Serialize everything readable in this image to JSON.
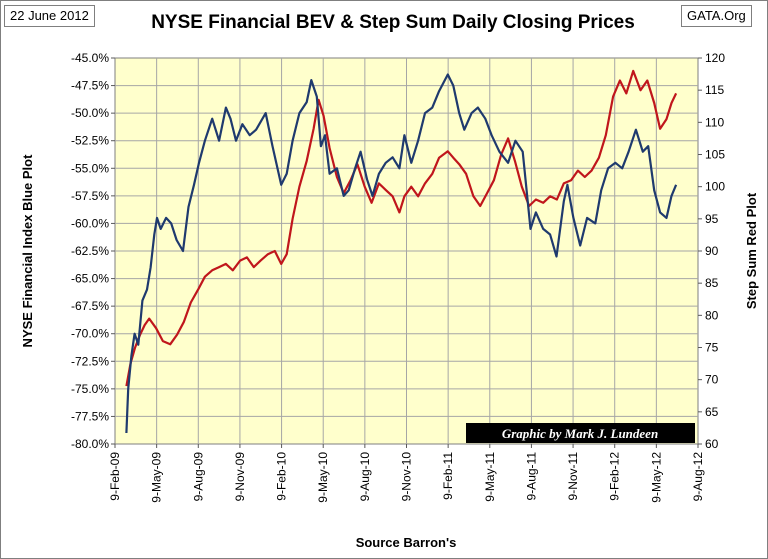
{
  "header": {
    "date_tag": "22 June 2012",
    "site_tag": "GATA.Org"
  },
  "chart_data": {
    "type": "line",
    "title": "NYSE Financial BEV & Step Sum Daily Closing Prices",
    "xlabel": "Source Barron's",
    "ylabel_left": "NYSE Financial Index Blue Plot",
    "ylabel_right": "Step Sum Red Plot",
    "credit": "Graphic by Mark J. Lundeen",
    "grid": true,
    "x_ticks": [
      "9-Feb-09",
      "9-May-09",
      "9-Aug-09",
      "9-Nov-09",
      "9-Feb-10",
      "9-May-10",
      "9-Aug-10",
      "9-Nov-10",
      "9-Feb-11",
      "9-May-11",
      "9-Aug-11",
      "9-Nov-11",
      "9-Feb-12",
      "9-May-12",
      "9-Aug-12"
    ],
    "y_left_ticks": [
      "-45.0%",
      "-47.5%",
      "-50.0%",
      "-52.5%",
      "-55.0%",
      "-57.5%",
      "-60.0%",
      "-62.5%",
      "-65.0%",
      "-67.5%",
      "-70.0%",
      "-72.5%",
      "-75.0%",
      "-77.5%",
      "-80.0%"
    ],
    "y_right_ticks": [
      "120",
      "115",
      "110",
      "105",
      "100",
      "95",
      "90",
      "85",
      "80",
      "75",
      "70",
      "65",
      "60"
    ],
    "y_left_range": [
      -80,
      -45
    ],
    "y_right_range": [
      60,
      120
    ],
    "colors": {
      "blue_series": "#1f3a6e",
      "red_series": "#c0161c",
      "plot_bg": "#ffffcc",
      "grid": "#a6a6a6"
    },
    "series": [
      {
        "axis": "left",
        "points": [
          [
            "2009-03-06",
            -79.0
          ],
          [
            "2009-03-10",
            -75.0
          ],
          [
            "2009-03-17",
            -72.0
          ],
          [
            "2009-03-24",
            -70.0
          ],
          [
            "2009-04-01",
            -71.0
          ],
          [
            "2009-04-10",
            -67.0
          ],
          [
            "2009-04-20",
            -66.0
          ],
          [
            "2009-04-28",
            -64.0
          ],
          [
            "2009-05-06",
            -61.0
          ],
          [
            "2009-05-12",
            -59.5
          ],
          [
            "2009-05-20",
            -60.5
          ],
          [
            "2009-06-01",
            -59.5
          ],
          [
            "2009-06-12",
            -60.0
          ],
          [
            "2009-06-24",
            -61.5
          ],
          [
            "2009-07-08",
            -62.5
          ],
          [
            "2009-07-20",
            -58.5
          ],
          [
            "2009-08-01",
            -56.5
          ],
          [
            "2009-08-12",
            -54.5
          ],
          [
            "2009-08-25",
            -52.5
          ],
          [
            "2009-09-10",
            -50.5
          ],
          [
            "2009-09-25",
            -52.5
          ],
          [
            "2009-10-10",
            -49.5
          ],
          [
            "2009-10-20",
            -50.5
          ],
          [
            "2009-11-01",
            -52.5
          ],
          [
            "2009-11-15",
            -51.0
          ],
          [
            "2009-12-01",
            -52.0
          ],
          [
            "2009-12-15",
            -51.5
          ],
          [
            "2010-01-05",
            -50.0
          ],
          [
            "2010-01-20",
            -53.0
          ],
          [
            "2010-02-08",
            -56.5
          ],
          [
            "2010-02-20",
            -55.5
          ],
          [
            "2010-03-05",
            -52.5
          ],
          [
            "2010-03-20",
            -50.0
          ],
          [
            "2010-04-05",
            -49.0
          ],
          [
            "2010-04-15",
            -47.0
          ],
          [
            "2010-04-27",
            -48.5
          ],
          [
            "2010-05-06",
            -53.0
          ],
          [
            "2010-05-15",
            -52.0
          ],
          [
            "2010-05-25",
            -55.5
          ],
          [
            "2010-06-10",
            -55.0
          ],
          [
            "2010-06-25",
            -57.5
          ],
          [
            "2010-07-06",
            -57.0
          ],
          [
            "2010-07-20",
            -55.0
          ],
          [
            "2010-08-01",
            -53.5
          ],
          [
            "2010-08-15",
            -56.0
          ],
          [
            "2010-08-27",
            -57.5
          ],
          [
            "2010-09-10",
            -55.5
          ],
          [
            "2010-09-25",
            -54.5
          ],
          [
            "2010-10-10",
            -54.0
          ],
          [
            "2010-10-25",
            -55.0
          ],
          [
            "2010-11-05",
            -52.0
          ],
          [
            "2010-11-20",
            -54.5
          ],
          [
            "2010-12-05",
            -52.5
          ],
          [
            "2010-12-20",
            -50.0
          ],
          [
            "2011-01-05",
            -49.5
          ],
          [
            "2011-01-20",
            -48.0
          ],
          [
            "2011-02-08",
            -46.5
          ],
          [
            "2011-02-20",
            -47.5
          ],
          [
            "2011-03-05",
            -50.0
          ],
          [
            "2011-03-16",
            -51.5
          ],
          [
            "2011-04-01",
            -50.0
          ],
          [
            "2011-04-15",
            -49.5
          ],
          [
            "2011-05-01",
            -50.5
          ],
          [
            "2011-05-15",
            -52.0
          ],
          [
            "2011-06-01",
            -53.5
          ],
          [
            "2011-06-20",
            -54.5
          ],
          [
            "2011-07-06",
            -52.5
          ],
          [
            "2011-07-22",
            -53.5
          ],
          [
            "2011-08-08",
            -60.5
          ],
          [
            "2011-08-20",
            -59.0
          ],
          [
            "2011-09-05",
            -60.5
          ],
          [
            "2011-09-20",
            -61.0
          ],
          [
            "2011-10-04",
            -63.0
          ],
          [
            "2011-10-20",
            -58.0
          ],
          [
            "2011-10-28",
            -56.5
          ],
          [
            "2011-11-10",
            -59.5
          ],
          [
            "2011-11-25",
            -62.0
          ],
          [
            "2011-12-10",
            -59.5
          ],
          [
            "2011-12-28",
            -60.0
          ],
          [
            "2012-01-10",
            -57.0
          ],
          [
            "2012-01-25",
            -55.0
          ],
          [
            "2012-02-10",
            -54.5
          ],
          [
            "2012-02-25",
            -55.0
          ],
          [
            "2012-03-10",
            -53.5
          ],
          [
            "2012-03-26",
            -51.5
          ],
          [
            "2012-04-10",
            -53.5
          ],
          [
            "2012-04-22",
            -53.0
          ],
          [
            "2012-05-05",
            -57.0
          ],
          [
            "2012-05-18",
            -59.0
          ],
          [
            "2012-06-01",
            -59.5
          ],
          [
            "2012-06-12",
            -57.5
          ],
          [
            "2012-06-22",
            -56.5
          ]
        ]
      },
      {
        "axis": "right",
        "points": [
          [
            "2009-03-06",
            69.0
          ],
          [
            "2009-03-15",
            72.5
          ],
          [
            "2009-03-25",
            75.0
          ],
          [
            "2009-04-05",
            77.0
          ],
          [
            "2009-04-15",
            78.5
          ],
          [
            "2009-04-25",
            79.5
          ],
          [
            "2009-05-10",
            78.0
          ],
          [
            "2009-05-25",
            76.0
          ],
          [
            "2009-06-10",
            75.5
          ],
          [
            "2009-06-25",
            77.0
          ],
          [
            "2009-07-10",
            79.0
          ],
          [
            "2009-07-25",
            82.0
          ],
          [
            "2009-08-10",
            84.0
          ],
          [
            "2009-08-25",
            86.0
          ],
          [
            "2009-09-10",
            87.0
          ],
          [
            "2009-09-25",
            87.5
          ],
          [
            "2009-10-10",
            88.0
          ],
          [
            "2009-10-25",
            87.0
          ],
          [
            "2009-11-10",
            88.5
          ],
          [
            "2009-11-25",
            89.0
          ],
          [
            "2009-12-10",
            87.5
          ],
          [
            "2009-12-25",
            88.5
          ],
          [
            "2010-01-10",
            89.5
          ],
          [
            "2010-01-25",
            90.0
          ],
          [
            "2010-02-08",
            88.0
          ],
          [
            "2010-02-20",
            89.5
          ],
          [
            "2010-03-05",
            95.0
          ],
          [
            "2010-03-20",
            100.0
          ],
          [
            "2010-04-05",
            104.0
          ],
          [
            "2010-04-20",
            109.0
          ],
          [
            "2010-05-01",
            113.5
          ],
          [
            "2010-05-12",
            111.0
          ],
          [
            "2010-05-25",
            106.0
          ],
          [
            "2010-06-10",
            101.5
          ],
          [
            "2010-06-25",
            99.0
          ],
          [
            "2010-07-10",
            101.0
          ],
          [
            "2010-07-25",
            103.5
          ],
          [
            "2010-08-10",
            100.0
          ],
          [
            "2010-08-25",
            97.5
          ],
          [
            "2010-09-10",
            100.5
          ],
          [
            "2010-09-25",
            99.5
          ],
          [
            "2010-10-10",
            98.5
          ],
          [
            "2010-10-25",
            96.0
          ],
          [
            "2010-11-05",
            98.5
          ],
          [
            "2010-11-20",
            100.0
          ],
          [
            "2010-12-05",
            98.5
          ],
          [
            "2010-12-20",
            100.5
          ],
          [
            "2011-01-05",
            102.0
          ],
          [
            "2011-01-20",
            104.5
          ],
          [
            "2011-02-08",
            105.5
          ],
          [
            "2011-02-20",
            104.5
          ],
          [
            "2011-03-05",
            103.5
          ],
          [
            "2011-03-20",
            102.0
          ],
          [
            "2011-04-05",
            98.5
          ],
          [
            "2011-04-20",
            97.0
          ],
          [
            "2011-05-05",
            99.0
          ],
          [
            "2011-05-20",
            101.0
          ],
          [
            "2011-06-05",
            105.0
          ],
          [
            "2011-06-20",
            107.5
          ],
          [
            "2011-07-05",
            104.0
          ],
          [
            "2011-07-20",
            100.0
          ],
          [
            "2011-08-05",
            97.0
          ],
          [
            "2011-08-20",
            98.0
          ],
          [
            "2011-09-05",
            97.5
          ],
          [
            "2011-09-20",
            98.5
          ],
          [
            "2011-10-05",
            98.0
          ],
          [
            "2011-10-20",
            100.5
          ],
          [
            "2011-11-05",
            101.0
          ],
          [
            "2011-11-20",
            102.5
          ],
          [
            "2011-12-05",
            101.5
          ],
          [
            "2011-12-20",
            102.5
          ],
          [
            "2012-01-05",
            104.5
          ],
          [
            "2012-01-20",
            108.0
          ],
          [
            "2012-02-05",
            114.0
          ],
          [
            "2012-02-20",
            116.5
          ],
          [
            "2012-03-05",
            114.5
          ],
          [
            "2012-03-20",
            118.0
          ],
          [
            "2012-04-05",
            115.0
          ],
          [
            "2012-04-20",
            116.5
          ],
          [
            "2012-05-05",
            113.0
          ],
          [
            "2012-05-18",
            109.0
          ],
          [
            "2012-06-01",
            110.5
          ],
          [
            "2012-06-12",
            113.0
          ],
          [
            "2012-06-22",
            114.5
          ]
        ]
      }
    ]
  }
}
